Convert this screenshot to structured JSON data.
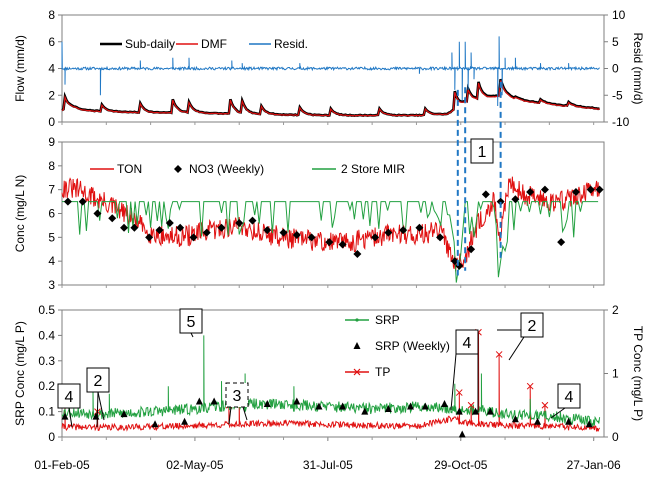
{
  "chart_data": [
    {
      "id": "flow",
      "type": "line",
      "ylabel": "Flow (mm/d)",
      "y2label": "Resid (mm/d)",
      "ylim": [
        0,
        8
      ],
      "y2lim": [
        -10,
        10
      ],
      "yticks": [
        0,
        2,
        4,
        6,
        8
      ],
      "y2ticks": [
        -10,
        -5,
        0,
        5,
        10
      ],
      "legend_position": "top",
      "series": [
        {
          "name": "Sub-daily",
          "color": "#000000",
          "axis": "left",
          "points": [
            [
              "2005-02-01",
              0.9
            ],
            [
              "2005-02-08",
              1.1
            ],
            [
              "2005-02-15",
              0.9
            ],
            [
              "2005-03-01",
              0.8
            ],
            [
              "2005-04-01",
              0.7
            ],
            [
              "2005-05-01",
              0.7
            ],
            [
              "2005-06-01",
              0.6
            ],
            [
              "2005-07-01",
              0.55
            ],
            [
              "2005-08-01",
              0.5
            ],
            [
              "2005-09-01",
              0.5
            ],
            [
              "2005-10-01",
              0.5
            ],
            [
              "2005-10-20",
              0.6
            ],
            [
              "2005-11-01",
              1.5
            ],
            [
              "2005-11-10",
              1.7
            ],
            [
              "2005-11-25",
              2.0
            ],
            [
              "2005-12-10",
              1.6
            ],
            [
              "2006-01-01",
              1.3
            ],
            [
              "2006-01-31",
              1.0
            ]
          ],
          "peaks": [
            [
              "2005-02-03",
              1.9
            ],
            [
              "2005-02-28",
              1.3
            ],
            [
              "2005-03-26",
              1.4
            ],
            [
              "2005-04-17",
              1.7
            ],
            [
              "2005-04-28",
              1.5
            ],
            [
              "2005-05-26",
              1.7
            ],
            [
              "2005-06-03",
              1.6
            ],
            [
              "2005-06-16",
              1.2
            ],
            [
              "2005-07-12",
              1.1
            ],
            [
              "2005-08-02",
              1.0
            ],
            [
              "2005-09-04",
              1.0
            ],
            [
              "2005-10-05",
              1.0
            ],
            [
              "2005-10-25",
              2.3
            ],
            [
              "2005-11-03",
              2.5
            ],
            [
              "2005-11-10",
              3.0
            ],
            [
              "2005-11-25",
              3.2
            ],
            [
              "2005-12-05",
              1.9
            ],
            [
              "2005-12-22",
              1.7
            ],
            [
              "2006-01-10",
              1.5
            ]
          ]
        },
        {
          "name": "DMF",
          "color": "#e01010",
          "axis": "left"
        },
        {
          "name": "Resid.",
          "color": "#1f77c4",
          "axis": "right",
          "spikes": [
            [
              "2005-02-01",
              5
            ],
            [
              "2005-02-03",
              -3
            ],
            [
              "2005-02-27",
              -5
            ],
            [
              "2005-03-26",
              1.5
            ],
            [
              "2005-04-17",
              2
            ],
            [
              "2005-04-28",
              2
            ],
            [
              "2005-05-27",
              1.5
            ],
            [
              "2005-06-03",
              1
            ],
            [
              "2005-07-12",
              1
            ],
            [
              "2005-10-01",
              -1
            ],
            [
              "2005-10-23",
              3
            ],
            [
              "2005-10-25",
              -4
            ],
            [
              "2005-10-28",
              5
            ],
            [
              "2005-10-30",
              -6
            ],
            [
              "2005-11-01",
              5
            ],
            [
              "2005-11-03",
              -4
            ],
            [
              "2005-11-05",
              3
            ],
            [
              "2005-11-07",
              -2
            ],
            [
              "2005-11-23",
              -7
            ],
            [
              "2005-11-24",
              6
            ],
            [
              "2005-11-26",
              -5
            ],
            [
              "2005-11-28",
              2
            ],
            [
              "2005-12-05",
              2
            ],
            [
              "2005-12-22",
              1
            ],
            [
              "2006-01-10",
              1
            ]
          ]
        }
      ]
    },
    {
      "id": "conc",
      "type": "line",
      "ylabel": "Conc (mg/L N)",
      "ylim": [
        3,
        9
      ],
      "yticks": [
        3,
        4,
        5,
        6,
        7,
        8,
        9
      ],
      "legend_position": "top",
      "series": [
        {
          "name": "TON",
          "color": "#e01010",
          "points": [
            [
              "2005-02-01",
              7.1
            ],
            [
              "2005-02-12",
              7.0
            ],
            [
              "2005-02-25",
              6.6
            ],
            [
              "2005-03-10",
              6.2
            ],
            [
              "2005-03-20",
              5.8
            ],
            [
              "2005-04-01",
              5.2
            ],
            [
              "2005-04-15",
              5.0
            ],
            [
              "2005-05-01",
              5.1
            ],
            [
              "2005-05-15",
              5.3
            ],
            [
              "2005-06-01",
              5.5
            ],
            [
              "2005-06-15",
              5.2
            ],
            [
              "2005-07-01",
              5.0
            ],
            [
              "2005-07-15",
              4.9
            ],
            [
              "2005-08-01",
              4.8
            ],
            [
              "2005-08-15",
              4.8
            ],
            [
              "2005-09-01",
              5.0
            ],
            [
              "2005-09-15",
              5.2
            ],
            [
              "2005-10-01",
              5.1
            ],
            [
              "2005-10-15",
              5.3
            ],
            [
              "2005-10-25",
              4.0
            ],
            [
              "2005-11-01",
              4.2
            ],
            [
              "2005-11-10",
              5.6
            ],
            [
              "2005-11-20",
              6.5
            ],
            [
              "2005-11-25",
              5.0
            ],
            [
              "2005-12-01",
              7.5
            ],
            [
              "2005-12-10",
              6.8
            ],
            [
              "2006-01-01",
              6.5
            ],
            [
              "2006-01-31",
              7.0
            ]
          ]
        },
        {
          "name": "NO3 (Weekly)",
          "color": "#000000",
          "points": [
            [
              "2005-02-05",
              6.5
            ],
            [
              "2005-02-15",
              6.5
            ],
            [
              "2005-02-25",
              6.0
            ],
            [
              "2005-03-07",
              5.8
            ],
            [
              "2005-03-15",
              5.4
            ],
            [
              "2005-03-22",
              5.4
            ],
            [
              "2005-04-01",
              5.0
            ],
            [
              "2005-04-08",
              5.3
            ],
            [
              "2005-04-15",
              5.6
            ],
            [
              "2005-04-22",
              5.4
            ],
            [
              "2005-05-01",
              5.0
            ],
            [
              "2005-05-10",
              5.2
            ],
            [
              "2005-05-20",
              5.4
            ],
            [
              "2005-06-01",
              5.6
            ],
            [
              "2005-06-10",
              5.7
            ],
            [
              "2005-06-20",
              5.3
            ],
            [
              "2005-07-01",
              5.2
            ],
            [
              "2005-07-10",
              5.1
            ],
            [
              "2005-07-20",
              5.0
            ],
            [
              "2005-08-01",
              4.8
            ],
            [
              "2005-08-10",
              4.7
            ],
            [
              "2005-08-20",
              4.3
            ],
            [
              "2005-09-01",
              5.0
            ],
            [
              "2005-09-10",
              5.2
            ],
            [
              "2005-09-20",
              5.3
            ],
            [
              "2005-10-01",
              5.4
            ],
            [
              "2005-10-15",
              5.0
            ],
            [
              "2005-10-25",
              4.0
            ],
            [
              "2005-10-28",
              3.8
            ],
            [
              "2005-11-05",
              4.5
            ],
            [
              "2005-11-15",
              6.8
            ],
            [
              "2005-11-25",
              6.5
            ],
            [
              "2005-12-05",
              6.6
            ],
            [
              "2005-12-15",
              6.9
            ],
            [
              "2005-12-25",
              7.0
            ],
            [
              "2006-01-05",
              4.8
            ],
            [
              "2006-01-15",
              6.9
            ],
            [
              "2006-01-25",
              7.0
            ],
            [
              "2006-01-31",
              7.0
            ]
          ]
        },
        {
          "name": "2 Store MIR",
          "color": "#22a040",
          "points": [
            [
              "2005-02-01",
              6.5
            ],
            [
              "2005-10-20",
              6.5
            ],
            [
              "2005-10-28",
              3.5
            ],
            [
              "2005-11-01",
              6.5
            ],
            [
              "2005-11-20",
              6.5
            ],
            [
              "2005-11-25",
              4.0
            ],
            [
              "2005-12-01",
              6.5
            ],
            [
              "2006-01-31",
              6.5
            ]
          ]
        }
      ]
    },
    {
      "id": "phos",
      "type": "line",
      "ylabel": "SRP Conc (mg/L P)",
      "y2label": "TP Conc (mg/L P)",
      "ylim": [
        0,
        0.5
      ],
      "y2lim": [
        0,
        2
      ],
      "yticks": [
        0,
        0.1,
        0.2,
        0.3,
        0.4,
        0.5
      ],
      "y2ticks": [
        0,
        1,
        2
      ],
      "xticks": [
        "01-Feb-05",
        "02-May-05",
        "31-Jul-05",
        "29-Oct-05",
        "27-Jan-06"
      ],
      "legend_position": "top-right",
      "series": [
        {
          "name": "SRP",
          "color": "#22a040",
          "axis": "left",
          "points": [
            [
              "2005-02-01",
              0.1
            ],
            [
              "2005-03-01",
              0.09
            ],
            [
              "2005-04-01",
              0.1
            ],
            [
              "2005-05-01",
              0.11
            ],
            [
              "2005-06-01",
              0.13
            ],
            [
              "2005-07-01",
              0.13
            ],
            [
              "2005-08-01",
              0.12
            ],
            [
              "2005-09-01",
              0.11
            ],
            [
              "2005-10-01",
              0.12
            ],
            [
              "2005-11-01",
              0.11
            ],
            [
              "2005-12-01",
              0.09
            ],
            [
              "2006-01-01",
              0.08
            ],
            [
              "2006-01-31",
              0.06
            ]
          ],
          "spikes": [
            [
              "2005-02-22",
              0.18
            ],
            [
              "2005-03-05",
              0.17
            ],
            [
              "2005-04-14",
              0.2
            ],
            [
              "2005-05-08",
              0.4
            ],
            [
              "2005-05-20",
              0.22
            ],
            [
              "2005-06-05",
              0.25
            ],
            [
              "2005-07-08",
              0.2
            ],
            [
              "2005-10-25",
              0.21
            ],
            [
              "2005-11-12",
              0.25
            ],
            [
              "2005-12-15",
              0.15
            ]
          ]
        },
        {
          "name": "SRP (Weekly)",
          "color": "#000000",
          "axis": "left",
          "points": [
            [
              "2005-02-03",
              0.08
            ],
            [
              "2005-02-24",
              0.08
            ],
            [
              "2005-03-15",
              0.09
            ],
            [
              "2005-04-05",
              0.05
            ],
            [
              "2005-04-25",
              0.06
            ],
            [
              "2005-05-05",
              0.14
            ],
            [
              "2005-05-15",
              0.14
            ],
            [
              "2005-06-05",
              0.15
            ],
            [
              "2005-06-20",
              0.13
            ],
            [
              "2005-07-10",
              0.14
            ],
            [
              "2005-07-25",
              0.12
            ],
            [
              "2005-08-10",
              0.12
            ],
            [
              "2005-08-25",
              0.1
            ],
            [
              "2005-09-10",
              0.11
            ],
            [
              "2005-09-25",
              0.12
            ],
            [
              "2005-10-05",
              0.12
            ],
            [
              "2005-10-18",
              0.13
            ],
            [
              "2005-10-28",
              0.1
            ],
            [
              "2005-10-30",
              0.01
            ],
            [
              "2005-11-08",
              0.1
            ],
            [
              "2005-11-18",
              0.1
            ],
            [
              "2005-12-05",
              0.07
            ],
            [
              "2005-12-20",
              0.06
            ],
            [
              "2006-01-10",
              0.06
            ],
            [
              "2006-01-24",
              0.05
            ]
          ]
        },
        {
          "name": "TP",
          "color": "#e01010",
          "axis": "right",
          "points": [
            [
              "2005-02-01",
              0.16
            ],
            [
              "2005-03-01",
              0.15
            ],
            [
              "2005-04-01",
              0.16
            ],
            [
              "2005-05-01",
              0.18
            ],
            [
              "2005-06-01",
              0.2
            ],
            [
              "2005-07-01",
              0.22
            ],
            [
              "2005-08-01",
              0.2
            ],
            [
              "2005-09-01",
              0.18
            ],
            [
              "2005-10-01",
              0.17
            ],
            [
              "2005-10-25",
              0.3
            ],
            [
              "2005-11-01",
              0.22
            ],
            [
              "2005-12-01",
              0.18
            ],
            [
              "2006-01-01",
              0.17
            ],
            [
              "2006-01-31",
              0.12
            ]
          ],
          "spikes": [
            [
              "2005-02-03",
              0.5
            ],
            [
              "2005-02-25",
              0.4
            ],
            [
              "2005-05-25",
              0.5
            ],
            [
              "2005-06-01",
              0.6
            ],
            [
              "2005-10-28",
              0.7
            ],
            [
              "2005-11-05",
              0.5
            ],
            [
              "2005-11-10",
              1.65
            ],
            [
              "2005-11-24",
              1.3
            ],
            [
              "2005-12-15",
              0.8
            ],
            [
              "2005-12-25",
              0.5
            ]
          ]
        }
      ]
    }
  ],
  "annotations": [
    {
      "label": "1",
      "dashed": false
    },
    {
      "label": "2",
      "dashed": false
    },
    {
      "label": "2",
      "dashed": false
    },
    {
      "label": "3",
      "dashed": true
    },
    {
      "label": "4",
      "dashed": false
    },
    {
      "label": "4",
      "dashed": false
    },
    {
      "label": "4",
      "dashed": false
    },
    {
      "label": "5",
      "dashed": false
    }
  ]
}
